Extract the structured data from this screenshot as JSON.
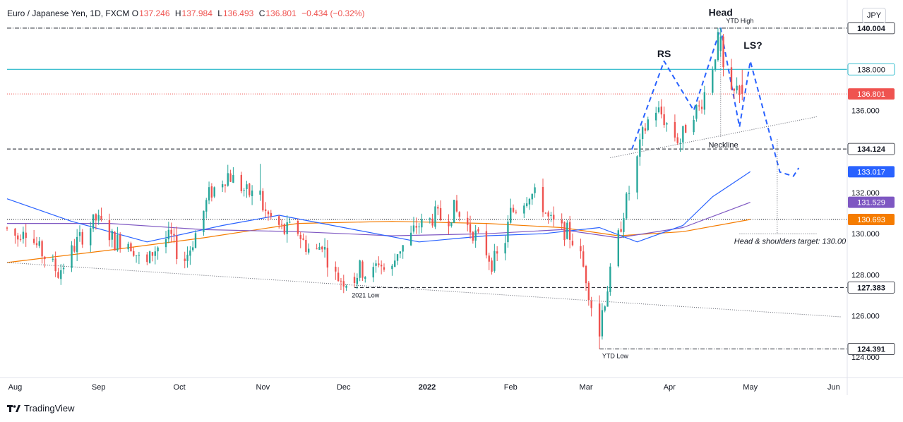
{
  "header": {
    "symbol": "Euro / Japanese Yen, 1D, FXCM",
    "o_label": "O",
    "o": "137.246",
    "h_label": "H",
    "h": "137.984",
    "l_label": "L",
    "l": "136.493",
    "c_label": "C",
    "c": "136.801",
    "change": "−0.434 (−0.32%)"
  },
  "currency_button": "JPY",
  "brand": "TradingView",
  "colors": {
    "up": "#26a69a",
    "down": "#ef5350",
    "ma_fast": "#2962ff",
    "ma_mid": "#7e57c2",
    "ma_slow": "#f57c00",
    "pattern": "#2962ff",
    "level_138": "#00acc1"
  },
  "chart_data": {
    "type": "candlestick",
    "title": "Euro / Japanese Yen, 1D, FXCM",
    "x_ticks": [
      "Aug",
      "Sep",
      "Oct",
      "Nov",
      "Dec",
      "2022",
      "Feb",
      "Mar",
      "Apr",
      "May",
      "Jun"
    ],
    "y_ticks": [
      "124.000",
      "126.000",
      "128.000",
      "130.000",
      "132.000",
      "136.000"
    ],
    "ylim": [
      123.0,
      141.1
    ],
    "price_labels": [
      {
        "id": "p140004",
        "text": "140.004",
        "value": 140.004,
        "bg": "#ffffff",
        "fg": "#131722",
        "bold": true,
        "border": "#131722"
      },
      {
        "id": "p138000",
        "text": "138.000",
        "value": 138.0,
        "bg": "#ffffff",
        "fg": "#131722",
        "bold": false,
        "border": "#00acc1"
      },
      {
        "id": "p136801",
        "text": "136.801",
        "value": 136.801,
        "bg": "#ef5350",
        "fg": "#ffffff",
        "bold": false,
        "border": "#ef5350"
      },
      {
        "id": "p134124",
        "text": "134.124",
        "value": 134.124,
        "bg": "#ffffff",
        "fg": "#131722",
        "bold": true,
        "border": "#131722"
      },
      {
        "id": "p133017",
        "text": "133.017",
        "value": 133.017,
        "bg": "#2962ff",
        "fg": "#ffffff",
        "bold": false,
        "border": "#2962ff"
      },
      {
        "id": "p131529",
        "text": "131.529",
        "value": 131.529,
        "bg": "#7e57c2",
        "fg": "#ffffff",
        "bold": false,
        "border": "#7e57c2"
      },
      {
        "id": "p130693",
        "text": "130.693",
        "value": 130.693,
        "bg": "#f57c00",
        "fg": "#ffffff",
        "bold": false,
        "border": "#f57c00"
      },
      {
        "id": "p127383",
        "text": "127.383",
        "value": 127.383,
        "bg": "#ffffff",
        "fg": "#131722",
        "bold": true,
        "border": "#131722"
      },
      {
        "id": "p124391",
        "text": "124.391",
        "value": 124.391,
        "bg": "#ffffff",
        "fg": "#131722",
        "bold": true,
        "border": "#131722"
      }
    ],
    "annotations": {
      "head": "Head",
      "rs": "RS",
      "ls": "LS?",
      "neckline": "Neckline",
      "ytd_high": "YTD High",
      "ytd_low": "YTD Low",
      "low_2021": "2021 Low",
      "target": "Head & shoulders target: 130.00"
    },
    "price_path": [
      [
        "2021-07-30",
        130.3
      ],
      [
        "2021-08-02",
        130.0
      ],
      [
        "2021-08-04",
        129.8
      ],
      [
        "2021-08-06",
        130.4
      ],
      [
        "2021-08-10",
        129.6
      ],
      [
        "2021-08-12",
        129.2
      ],
      [
        "2021-08-16",
        128.6
      ],
      [
        "2021-08-19",
        128.1
      ],
      [
        "2021-08-23",
        128.9
      ],
      [
        "2021-08-26",
        129.6
      ],
      [
        "2021-08-30",
        130.2
      ],
      [
        "2021-09-02",
        130.7
      ],
      [
        "2021-09-06",
        130.2
      ],
      [
        "2021-09-09",
        129.6
      ],
      [
        "2021-09-13",
        129.8
      ],
      [
        "2021-09-16",
        129.3
      ],
      [
        "2021-09-20",
        128.2
      ],
      [
        "2021-09-23",
        129.1
      ],
      [
        "2021-09-27",
        129.7
      ],
      [
        "2021-09-30",
        129.8
      ],
      [
        "2021-10-04",
        128.5
      ],
      [
        "2021-10-07",
        129.3
      ],
      [
        "2021-10-11",
        130.7
      ],
      [
        "2021-10-14",
        131.9
      ],
      [
        "2021-10-18",
        132.5
      ],
      [
        "2021-10-21",
        132.9
      ],
      [
        "2021-10-25",
        132.4
      ],
      [
        "2021-10-28",
        132.0
      ],
      [
        "2021-11-01",
        131.8
      ],
      [
        "2021-11-04",
        131.0
      ],
      [
        "2021-11-08",
        130.5
      ],
      [
        "2021-11-11",
        130.1
      ],
      [
        "2021-11-15",
        130.4
      ],
      [
        "2021-11-18",
        129.6
      ],
      [
        "2021-11-22",
        128.9
      ],
      [
        "2021-11-25",
        129.6
      ],
      [
        "2021-11-29",
        128.0
      ],
      [
        "2021-12-02",
        127.8
      ],
      [
        "2021-12-06",
        127.6
      ],
      [
        "2021-12-09",
        128.3
      ],
      [
        "2021-12-13",
        127.8
      ],
      [
        "2021-12-16",
        128.7
      ],
      [
        "2021-12-20",
        127.8
      ],
      [
        "2021-12-23",
        129.2
      ],
      [
        "2021-12-27",
        129.6
      ],
      [
        "2021-12-30",
        130.4
      ],
      [
        "2022-01-03",
        130.5
      ],
      [
        "2022-01-06",
        130.9
      ],
      [
        "2022-01-10",
        130.6
      ],
      [
        "2022-01-13",
        131.2
      ],
      [
        "2022-01-17",
        130.5
      ],
      [
        "2022-01-20",
        130.1
      ],
      [
        "2022-01-24",
        129.4
      ],
      [
        "2022-01-27",
        128.6
      ],
      [
        "2022-01-31",
        129.1
      ],
      [
        "2022-02-03",
        131.0
      ],
      [
        "2022-02-07",
        131.5
      ],
      [
        "2022-02-10",
        132.0
      ],
      [
        "2022-02-14",
        131.7
      ],
      [
        "2022-02-17",
        130.7
      ],
      [
        "2022-02-21",
        130.2
      ],
      [
        "2022-02-24",
        130.1
      ],
      [
        "2022-02-28",
        129.3
      ],
      [
        "2022-03-03",
        127.9
      ],
      [
        "2022-03-07",
        125.2
      ],
      [
        "2022-03-10",
        126.8
      ],
      [
        "2022-03-14",
        129.2
      ],
      [
        "2022-03-17",
        131.1
      ],
      [
        "2022-03-21",
        133.0
      ],
      [
        "2022-03-24",
        134.8
      ],
      [
        "2022-03-28",
        136.2
      ],
      [
        "2022-03-31",
        135.8
      ],
      [
        "2022-04-04",
        134.9
      ],
      [
        "2022-04-07",
        134.5
      ],
      [
        "2022-04-11",
        135.9
      ],
      [
        "2022-04-14",
        136.1
      ],
      [
        "2022-04-18",
        137.6
      ],
      [
        "2022-04-21",
        139.4
      ],
      [
        "2022-04-25",
        136.4
      ],
      [
        "2022-04-28",
        137.0
      ]
    ],
    "ohlc_sample": {
      "x": "2022-04-29",
      "o": 137.246,
      "h": 137.984,
      "l": 136.493,
      "c": 136.801
    },
    "extreme_candles": [
      {
        "x": "2021-11-01",
        "o": 131.9,
        "h": 133.4,
        "l": 131.6,
        "c": 132.1
      },
      {
        "x": "2021-12-06",
        "o": 127.9,
        "h": 128.1,
        "l": 127.4,
        "c": 127.6
      },
      {
        "x": "2022-03-07",
        "o": 126.6,
        "h": 127.0,
        "l": 124.391,
        "c": 125.0
      },
      {
        "x": "2022-04-21",
        "o": 138.9,
        "h": 140.004,
        "l": 138.6,
        "c": 139.6
      }
    ],
    "ma_fast": [
      [
        "2021-07-30",
        131.7
      ],
      [
        "2021-08-23",
        130.6
      ],
      [
        "2021-09-20",
        129.6
      ],
      [
        "2021-10-18",
        130.4
      ],
      [
        "2021-11-08",
        130.9
      ],
      [
        "2021-12-06",
        130.2
      ],
      [
        "2021-12-30",
        129.6
      ],
      [
        "2022-01-24",
        129.9
      ],
      [
        "2022-02-14",
        130.0
      ],
      [
        "2022-03-07",
        130.3
      ],
      [
        "2022-03-21",
        129.6
      ],
      [
        "2022-04-07",
        130.4
      ],
      [
        "2022-04-18",
        131.8
      ],
      [
        "2022-05-02",
        133.017
      ]
    ],
    "ma_mid": [
      [
        "2021-07-30",
        130.5
      ],
      [
        "2021-09-06",
        130.5
      ],
      [
        "2021-10-11",
        130.2
      ],
      [
        "2021-11-15",
        130.1
      ],
      [
        "2021-12-20",
        129.9
      ],
      [
        "2022-01-24",
        130.0
      ],
      [
        "2022-02-21",
        130.2
      ],
      [
        "2022-03-14",
        129.8
      ],
      [
        "2022-04-07",
        130.3
      ],
      [
        "2022-05-02",
        131.529
      ]
    ],
    "ma_slow": [
      [
        "2021-07-30",
        128.6
      ],
      [
        "2021-09-06",
        129.2
      ],
      [
        "2021-10-11",
        129.8
      ],
      [
        "2021-11-15",
        130.5
      ],
      [
        "2021-12-20",
        130.6
      ],
      [
        "2022-01-24",
        130.5
      ],
      [
        "2022-02-21",
        130.3
      ],
      [
        "2022-03-14",
        129.9
      ],
      [
        "2022-04-07",
        130.1
      ],
      [
        "2022-05-02",
        130.693
      ]
    ],
    "trendlines": {
      "lower": [
        [
          "2021-07-30",
          128.6
        ],
        [
          "2022-06-05",
          125.95
        ]
      ],
      "neckline": [
        [
          "2022-03-11",
          133.7
        ],
        [
          "2022-05-27",
          135.7
        ]
      ],
      "pattern": [
        [
          "2022-03-19",
          134.1
        ],
        [
          "2022-03-31",
          138.4
        ],
        [
          "2022-04-11",
          136.0
        ],
        [
          "2022-04-21",
          140.0
        ],
        [
          "2022-04-28",
          135.2
        ],
        [
          "2022-05-02",
          138.4
        ],
        [
          "2022-05-13",
          133.0
        ],
        [
          "2022-05-18",
          132.8
        ],
        [
          "2022-05-20",
          133.2
        ]
      ]
    },
    "horizontal_levels": [
      {
        "value": 140.004,
        "from": "2021-07-30",
        "style": "dashdot",
        "color": "#131722"
      },
      {
        "value": 138.0,
        "from": "2021-07-30",
        "style": "solid",
        "color": "#00acc1"
      },
      {
        "value": 136.801,
        "from": "2021-07-30",
        "style": "dotted",
        "color": "#ef5350"
      },
      {
        "value": 134.124,
        "from": "2021-07-30",
        "style": "dashed",
        "color": "#131722"
      },
      {
        "value": 130.693,
        "from": "2021-07-30",
        "style": "dotted",
        "color": "#131722"
      },
      {
        "value": 127.383,
        "from": "2021-12-06",
        "style": "dashed",
        "color": "#131722"
      },
      {
        "value": 124.391,
        "from": "2022-03-07",
        "style": "dashdot",
        "color": "#131722"
      }
    ]
  }
}
